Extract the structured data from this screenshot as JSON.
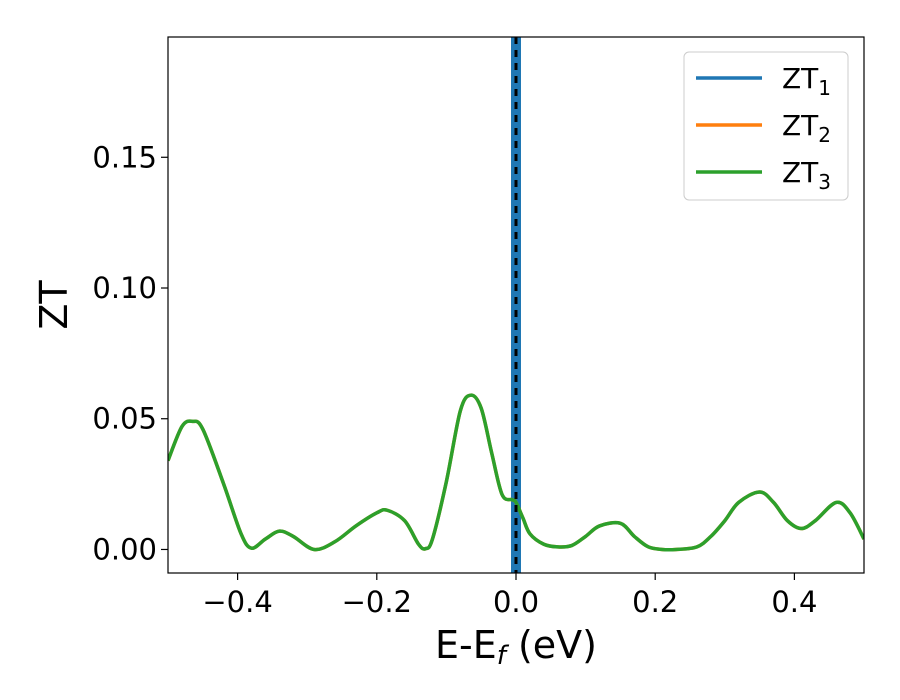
{
  "chart_data": {
    "type": "line",
    "title": "",
    "xlabel": {
      "main": "E-E",
      "sub": "f",
      "unit": " (eV)"
    },
    "ylabel": "ZT",
    "xlim": [
      -0.5,
      0.5
    ],
    "ylim": [
      -0.009,
      0.196
    ],
    "x_ticks": [
      -0.4,
      -0.2,
      0.0,
      0.2,
      0.4
    ],
    "x_tick_labels": [
      "−0.4",
      "−0.2",
      "0.0",
      "0.2",
      "0.4"
    ],
    "y_ticks": [
      0.0,
      0.05,
      0.1,
      0.15
    ],
    "y_tick_labels": [
      "0.00",
      "0.05",
      "0.10",
      "0.15"
    ],
    "grid": false,
    "legend_position": "top-right",
    "fermi_level_line": {
      "x": 0.0,
      "color": "#000000",
      "style": "dashed"
    },
    "series": [
      {
        "name": "ZT1",
        "label_main": "ZT",
        "label_sub": "1",
        "color": "#1f77b4",
        "style": "vertical",
        "x": [
          0.0,
          0.0
        ],
        "y": [
          -0.009,
          0.196
        ]
      },
      {
        "name": "ZT2",
        "label_main": "ZT",
        "label_sub": "2",
        "color": "#ff7f0e",
        "style": "line",
        "x": [
          -0.5,
          -0.48,
          -0.465,
          -0.45,
          -0.42,
          -0.395,
          -0.38,
          -0.36,
          -0.34,
          -0.32,
          -0.29,
          -0.26,
          -0.23,
          -0.2,
          -0.185,
          -0.16,
          -0.14,
          -0.13,
          -0.12,
          -0.1,
          -0.08,
          -0.065,
          -0.05,
          -0.035,
          -0.02,
          -0.005,
          0.0,
          0.01,
          0.02,
          0.04,
          0.06,
          0.08,
          0.1,
          0.12,
          0.15,
          0.17,
          0.19,
          0.21,
          0.23,
          0.26,
          0.28,
          0.3,
          0.32,
          0.35,
          0.37,
          0.39,
          0.41,
          0.43,
          0.46,
          0.48,
          0.5
        ],
        "y": [
          0.034,
          0.047,
          0.049,
          0.046,
          0.025,
          0.006,
          0.0005,
          0.004,
          0.007,
          0.005,
          0.0,
          0.003,
          0.009,
          0.014,
          0.015,
          0.011,
          0.002,
          0.0003,
          0.004,
          0.026,
          0.053,
          0.059,
          0.054,
          0.037,
          0.021,
          0.019,
          0.018,
          0.012,
          0.006,
          0.002,
          0.001,
          0.0015,
          0.005,
          0.009,
          0.01,
          0.005,
          0.001,
          0.0,
          0.0,
          0.001,
          0.005,
          0.011,
          0.018,
          0.022,
          0.018,
          0.011,
          0.008,
          0.011,
          0.018,
          0.014,
          0.004
        ]
      },
      {
        "name": "ZT3",
        "label_main": "ZT",
        "label_sub": "3",
        "color": "#2ca02c",
        "style": "line",
        "x": [
          -0.5,
          -0.48,
          -0.465,
          -0.45,
          -0.42,
          -0.395,
          -0.38,
          -0.36,
          -0.34,
          -0.32,
          -0.29,
          -0.26,
          -0.23,
          -0.2,
          -0.185,
          -0.16,
          -0.14,
          -0.13,
          -0.12,
          -0.1,
          -0.08,
          -0.065,
          -0.05,
          -0.035,
          -0.02,
          -0.005,
          0.0,
          0.01,
          0.02,
          0.04,
          0.06,
          0.08,
          0.1,
          0.12,
          0.15,
          0.17,
          0.19,
          0.21,
          0.23,
          0.26,
          0.28,
          0.3,
          0.32,
          0.35,
          0.37,
          0.39,
          0.41,
          0.43,
          0.46,
          0.48,
          0.5
        ],
        "y": [
          0.034,
          0.047,
          0.049,
          0.046,
          0.025,
          0.006,
          0.0005,
          0.004,
          0.007,
          0.005,
          0.0,
          0.003,
          0.009,
          0.014,
          0.015,
          0.011,
          0.002,
          0.0003,
          0.004,
          0.026,
          0.053,
          0.059,
          0.054,
          0.037,
          0.021,
          0.019,
          0.018,
          0.012,
          0.006,
          0.002,
          0.001,
          0.0015,
          0.005,
          0.009,
          0.01,
          0.005,
          0.001,
          0.0,
          0.0,
          0.001,
          0.005,
          0.011,
          0.018,
          0.022,
          0.018,
          0.011,
          0.008,
          0.011,
          0.018,
          0.014,
          0.004
        ]
      }
    ]
  }
}
